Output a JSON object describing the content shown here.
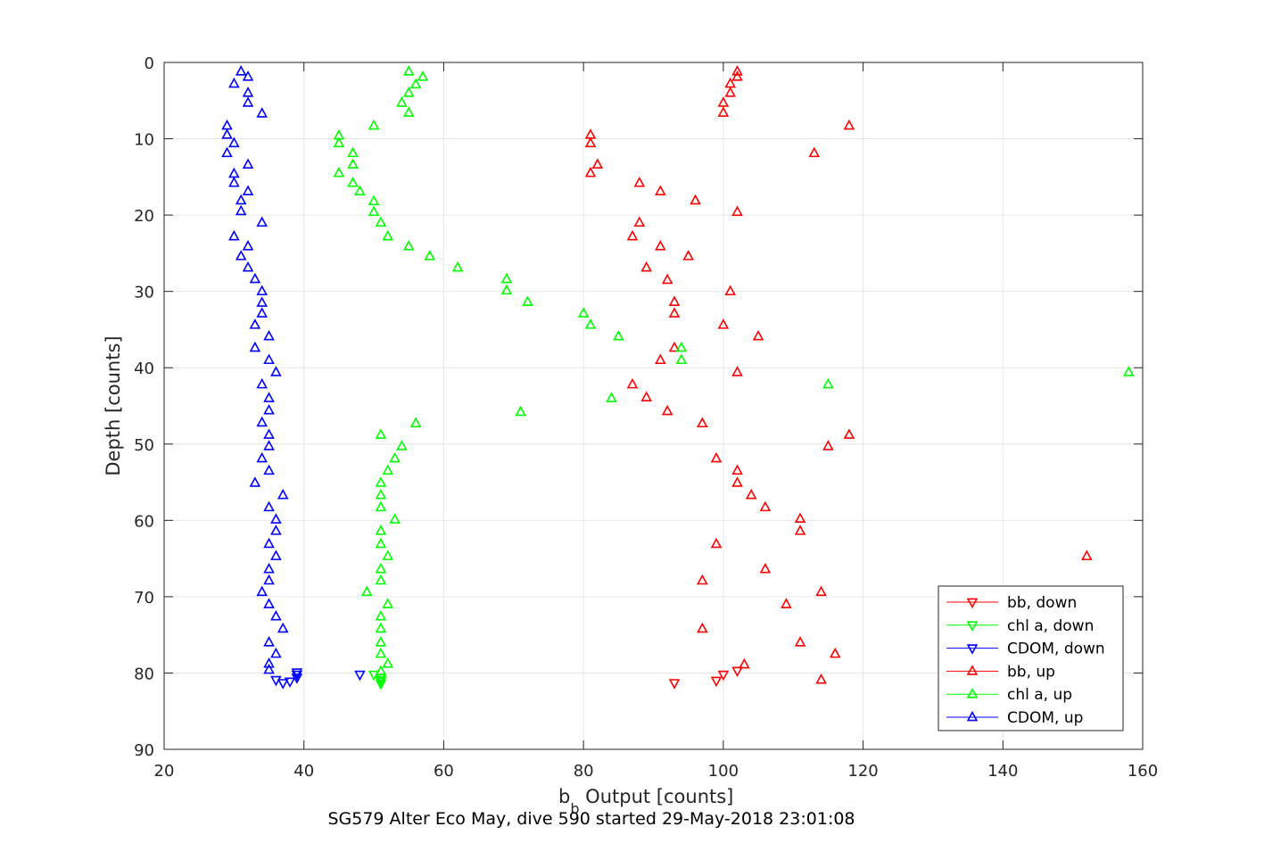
{
  "chart_data": {
    "type": "scatter",
    "title": "SG579 Alter Eco May, dive 590 started 29-May-2018 23:01:08",
    "xlabel_main": "b",
    "xlabel_sub": "b",
    "xlabel_rest": " Output [counts]",
    "ylabel": "Depth [counts]",
    "xlim": [
      20,
      160
    ],
    "ylim": [
      0,
      90
    ],
    "y_reversed": true,
    "grid": true,
    "legend_position": "bottom-right",
    "xticks": [
      "20",
      "40",
      "60",
      "80",
      "100",
      "120",
      "140",
      "160"
    ],
    "yticks": [
      "0",
      "10",
      "20",
      "30",
      "40",
      "50",
      "60",
      "70",
      "80",
      "90"
    ],
    "series": [
      {
        "name": "bb, down",
        "color": "#ff0000",
        "marker": "triangle-down",
        "x": [
          93,
          99,
          100,
          102
        ],
        "y": [
          81.3,
          81.0,
          80.2,
          79.7
        ]
      },
      {
        "name": "chl a, down",
        "color": "#00ff00",
        "marker": "triangle-down",
        "x": [
          50,
          51,
          51,
          51,
          51
        ],
        "y": [
          80.2,
          80.6,
          80.9,
          81.1,
          81.4
        ]
      },
      {
        "name": "CDOM, down",
        "color": "#0000ff",
        "marker": "triangle-down",
        "x": [
          36,
          37,
          38,
          39,
          39,
          39,
          48
        ],
        "y": [
          80.9,
          81.3,
          81.1,
          80.6,
          80.2,
          79.9,
          80.2
        ]
      },
      {
        "name": "bb, up",
        "color": "#ff0000",
        "marker": "triangle-up",
        "x": [
          102,
          102,
          101,
          101,
          100,
          100,
          118,
          81,
          81,
          113,
          82,
          81,
          88,
          91,
          96,
          102,
          88,
          87,
          91,
          95,
          89,
          92,
          101,
          93,
          93,
          100,
          105,
          93,
          91,
          102,
          87,
          89,
          92,
          97,
          118,
          115,
          99,
          102,
          102,
          104,
          106,
          111,
          111,
          99,
          152,
          106,
          97,
          114,
          109,
          97,
          111,
          116,
          103,
          114
        ],
        "y": [
          1.2,
          1.9,
          2.8,
          4.0,
          5.3,
          6.6,
          8.3,
          9.5,
          10.6,
          11.9,
          13.4,
          14.5,
          15.8,
          16.9,
          18.1,
          19.6,
          21.0,
          22.8,
          24.1,
          25.4,
          26.9,
          28.5,
          30.0,
          31.4,
          32.9,
          34.4,
          35.9,
          37.4,
          39.0,
          40.6,
          42.2,
          43.9,
          45.7,
          47.3,
          48.8,
          50.3,
          51.9,
          53.5,
          55.1,
          56.7,
          58.3,
          59.8,
          61.4,
          63.1,
          64.7,
          66.4,
          67.9,
          69.4,
          71.0,
          74.2,
          76.0,
          77.5,
          78.9,
          80.9
        ]
      },
      {
        "name": "chl a, up",
        "color": "#00ff00",
        "marker": "triangle-up",
        "x": [
          55,
          57,
          56,
          55,
          54,
          55,
          50,
          45,
          45,
          47,
          47,
          45,
          47,
          48,
          50,
          50,
          51,
          52,
          55,
          58,
          62,
          69,
          69,
          72,
          80,
          81,
          85,
          94,
          94,
          158,
          115,
          84,
          71,
          56,
          51,
          54,
          53,
          52,
          51,
          51,
          51,
          53,
          51,
          51,
          52,
          51,
          51,
          49,
          52,
          51,
          51,
          51,
          51,
          52,
          51
        ],
        "y": [
          1.2,
          1.9,
          2.9,
          4.0,
          5.3,
          6.6,
          8.3,
          9.6,
          10.6,
          11.9,
          13.4,
          14.5,
          15.8,
          16.9,
          18.2,
          19.6,
          21.0,
          22.8,
          24.1,
          25.4,
          26.9,
          28.4,
          29.9,
          31.4,
          32.9,
          34.4,
          35.9,
          37.4,
          39.0,
          40.6,
          42.2,
          44.0,
          45.8,
          47.3,
          48.8,
          50.3,
          51.9,
          53.5,
          55.1,
          56.7,
          58.3,
          59.9,
          61.4,
          63.1,
          64.7,
          66.4,
          67.9,
          69.4,
          71.0,
          72.6,
          74.2,
          76.0,
          77.5,
          78.8,
          79.8
        ]
      },
      {
        "name": "CDOM, up",
        "color": "#0000ff",
        "marker": "triangle-up",
        "x": [
          31,
          32,
          30,
          32,
          32,
          34,
          29,
          29,
          30,
          29,
          32,
          30,
          30,
          32,
          31,
          31,
          34,
          30,
          32,
          31,
          32,
          33,
          34,
          34,
          34,
          33,
          35,
          33,
          35,
          36,
          34,
          35,
          35,
          34,
          35,
          35,
          34,
          35,
          33,
          37,
          35,
          36,
          36,
          35,
          36,
          35,
          35,
          34,
          35,
          36,
          37,
          35,
          36,
          35,
          35
        ],
        "y": [
          1.2,
          1.9,
          2.8,
          4.0,
          5.3,
          6.7,
          8.3,
          9.5,
          10.6,
          11.9,
          13.4,
          14.6,
          15.8,
          16.9,
          18.1,
          19.5,
          21.0,
          22.8,
          24.1,
          25.4,
          26.9,
          28.4,
          30.0,
          31.5,
          32.9,
          34.4,
          35.9,
          37.4,
          39.0,
          40.6,
          42.2,
          44.0,
          45.6,
          47.2,
          48.8,
          50.3,
          51.9,
          53.5,
          55.1,
          56.7,
          58.3,
          59.9,
          61.4,
          63.1,
          64.7,
          66.4,
          67.9,
          69.4,
          71.0,
          72.6,
          74.2,
          76.0,
          77.5,
          78.8,
          79.6
        ]
      }
    ]
  }
}
